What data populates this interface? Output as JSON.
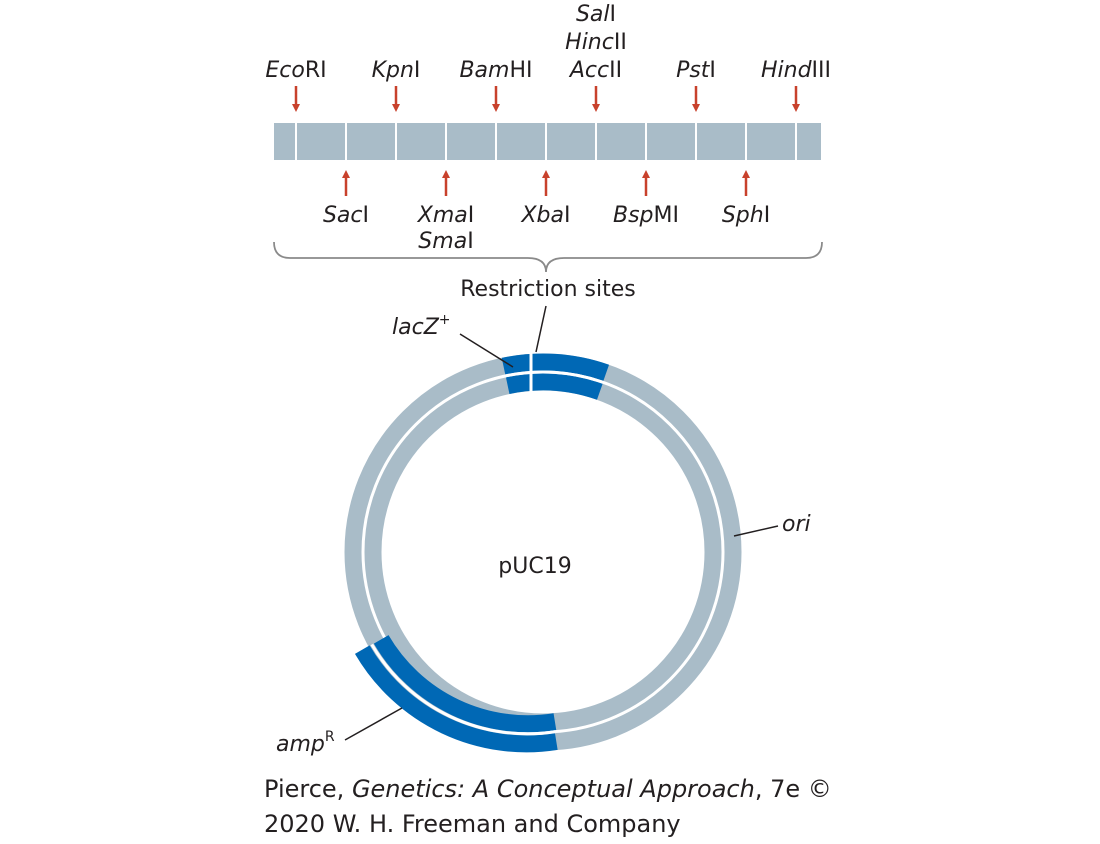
{
  "figure": {
    "mcs": {
      "top_sites": [
        {
          "italic": "Eco",
          "roman": "RI"
        },
        {
          "italic": "Kpn",
          "roman": "I"
        },
        {
          "italic": "Bam",
          "roman": "HI"
        },
        {
          "lines": [
            {
              "italic": "Sal",
              "roman": "I"
            },
            {
              "italic": "Hinc",
              "roman": "II"
            },
            {
              "italic": "Acc",
              "roman": "II"
            }
          ]
        },
        {
          "italic": "Pst",
          "roman": "I"
        },
        {
          "italic": "Hind",
          "roman": "III"
        }
      ],
      "bottom_sites": [
        {
          "italic": "Sac",
          "roman": "I"
        },
        {
          "lines": [
            {
              "italic": "Xma",
              "roman": "I"
            },
            {
              "italic": "Sma",
              "roman": "I"
            }
          ]
        },
        {
          "italic": "Xba",
          "roman": "I"
        },
        {
          "italic": "Bsp",
          "roman": "MI"
        },
        {
          "italic": "Sph",
          "roman": "I"
        }
      ],
      "brace_label": "Restriction sites"
    },
    "plasmid": {
      "name": "pUC19",
      "labels": {
        "lacz": {
          "italic": "lacZ",
          "sup": "+"
        },
        "ori": {
          "italic": "ori"
        },
        "amp": {
          "italic": "amp",
          "sup": "R"
        }
      }
    },
    "credit": {
      "line1_pre": "Pierce, ",
      "line1_title": "Genetics: A Conceptual Approach",
      "line1_post": ", 7e ©",
      "line2": "2020 W. H. Freeman and Company"
    },
    "colors": {
      "strand": "#a9bcc8",
      "gene": "#0068b5",
      "arrow": "#c8412c",
      "text": "#231f20",
      "brace": "#8a8a8a"
    }
  }
}
